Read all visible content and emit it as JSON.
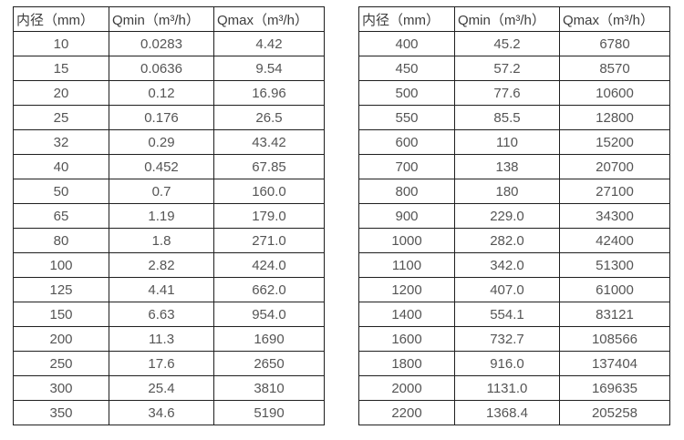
{
  "page": {
    "background_color": "#ffffff",
    "border_color": "#1f1f1f",
    "text_color": "#555555"
  },
  "tables": [
    {
      "headers": [
        "内径（mm）",
        "Qmin（m³/h）",
        "Qmax（m³/h）"
      ],
      "rows": [
        [
          "10",
          "0.0283",
          "4.42"
        ],
        [
          "15",
          "0.0636",
          "9.54"
        ],
        [
          "20",
          "0.12",
          "16.96"
        ],
        [
          "25",
          "0.176",
          "26.5"
        ],
        [
          "32",
          "0.29",
          "43.42"
        ],
        [
          "40",
          "0.452",
          "67.85"
        ],
        [
          "50",
          "0.7",
          "160.0"
        ],
        [
          "65",
          "1.19",
          "179.0"
        ],
        [
          "80",
          "1.8",
          "271.0"
        ],
        [
          "100",
          "2.82",
          "424.0"
        ],
        [
          "125",
          "4.41",
          "662.0"
        ],
        [
          "150",
          "6.63",
          "954.0"
        ],
        [
          "200",
          "11.3",
          "1690"
        ],
        [
          "250",
          "17.6",
          "2650"
        ],
        [
          "300",
          "25.4",
          "3810"
        ],
        [
          "350",
          "34.6",
          "5190"
        ]
      ]
    },
    {
      "headers": [
        "内径（mm）",
        "Qmin（m³/h）",
        "Qmax（m³/h）"
      ],
      "rows": [
        [
          "400",
          "45.2",
          "6780"
        ],
        [
          "450",
          "57.2",
          "8570"
        ],
        [
          "500",
          "77.6",
          "10600"
        ],
        [
          "550",
          "85.5",
          "12800"
        ],
        [
          "600",
          "110",
          "15200"
        ],
        [
          "700",
          "138",
          "20700"
        ],
        [
          "800",
          "180",
          "27100"
        ],
        [
          "900",
          "229.0",
          "34300"
        ],
        [
          "1000",
          "282.0",
          "42400"
        ],
        [
          "1100",
          "342.0",
          "51300"
        ],
        [
          "1200",
          "407.0",
          "61000"
        ],
        [
          "1400",
          "554.1",
          "83121"
        ],
        [
          "1600",
          "732.7",
          "108566"
        ],
        [
          "1800",
          "916.0",
          "137404"
        ],
        [
          "2000",
          "1131.0",
          "169635"
        ],
        [
          "2200",
          "1368.4",
          "205258"
        ]
      ]
    }
  ]
}
